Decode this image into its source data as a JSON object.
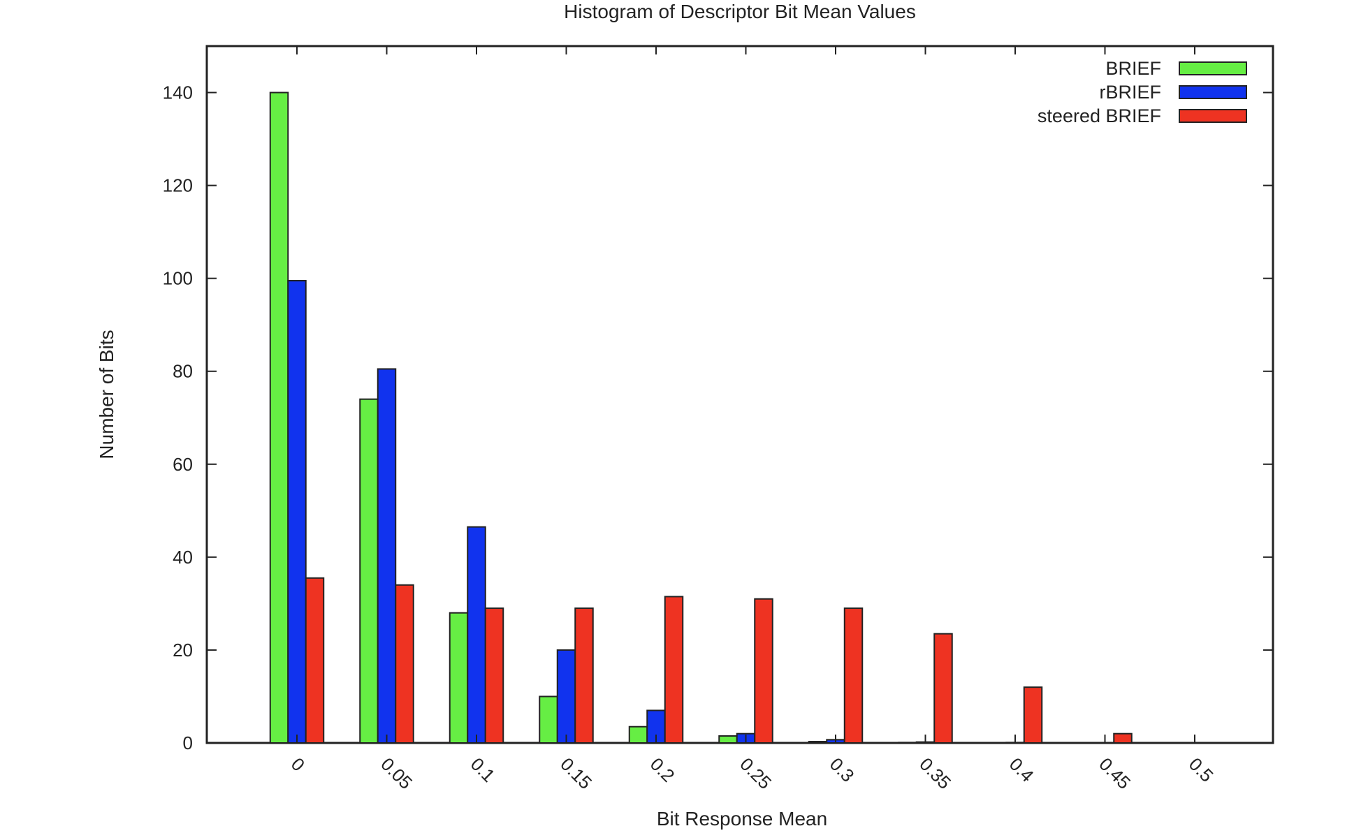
{
  "chart_data": {
    "type": "bar",
    "title": "Histogram of Descriptor Bit Mean Values",
    "xlabel": "Bit Response Mean",
    "ylabel": "Number of Bits",
    "categories": [
      "0",
      "0.05",
      "0.1",
      "0.15",
      "0.2",
      "0.25",
      "0.3",
      "0.35",
      "0.4",
      "0.45",
      "0.5"
    ],
    "ylim": [
      0,
      150
    ],
    "yticks": [
      0,
      20,
      40,
      60,
      80,
      100,
      120,
      140
    ],
    "legend_position": "top-right",
    "grid": false,
    "series": [
      {
        "name": "BRIEF",
        "color": "#66ee44",
        "values": [
          140,
          74,
          28,
          10,
          3.5,
          1.5,
          0.3,
          0.1,
          0,
          0,
          0
        ]
      },
      {
        "name": "rBRIEF",
        "color": "#1133ee",
        "values": [
          99.5,
          80.5,
          46.5,
          20,
          7,
          2,
          0.7,
          0.2,
          0.1,
          0,
          0
        ]
      },
      {
        "name": "steered BRIEF",
        "color": "#ee3322",
        "values": [
          35.5,
          34,
          29,
          29,
          31.5,
          31,
          29,
          23.5,
          12,
          2,
          0
        ]
      }
    ]
  }
}
